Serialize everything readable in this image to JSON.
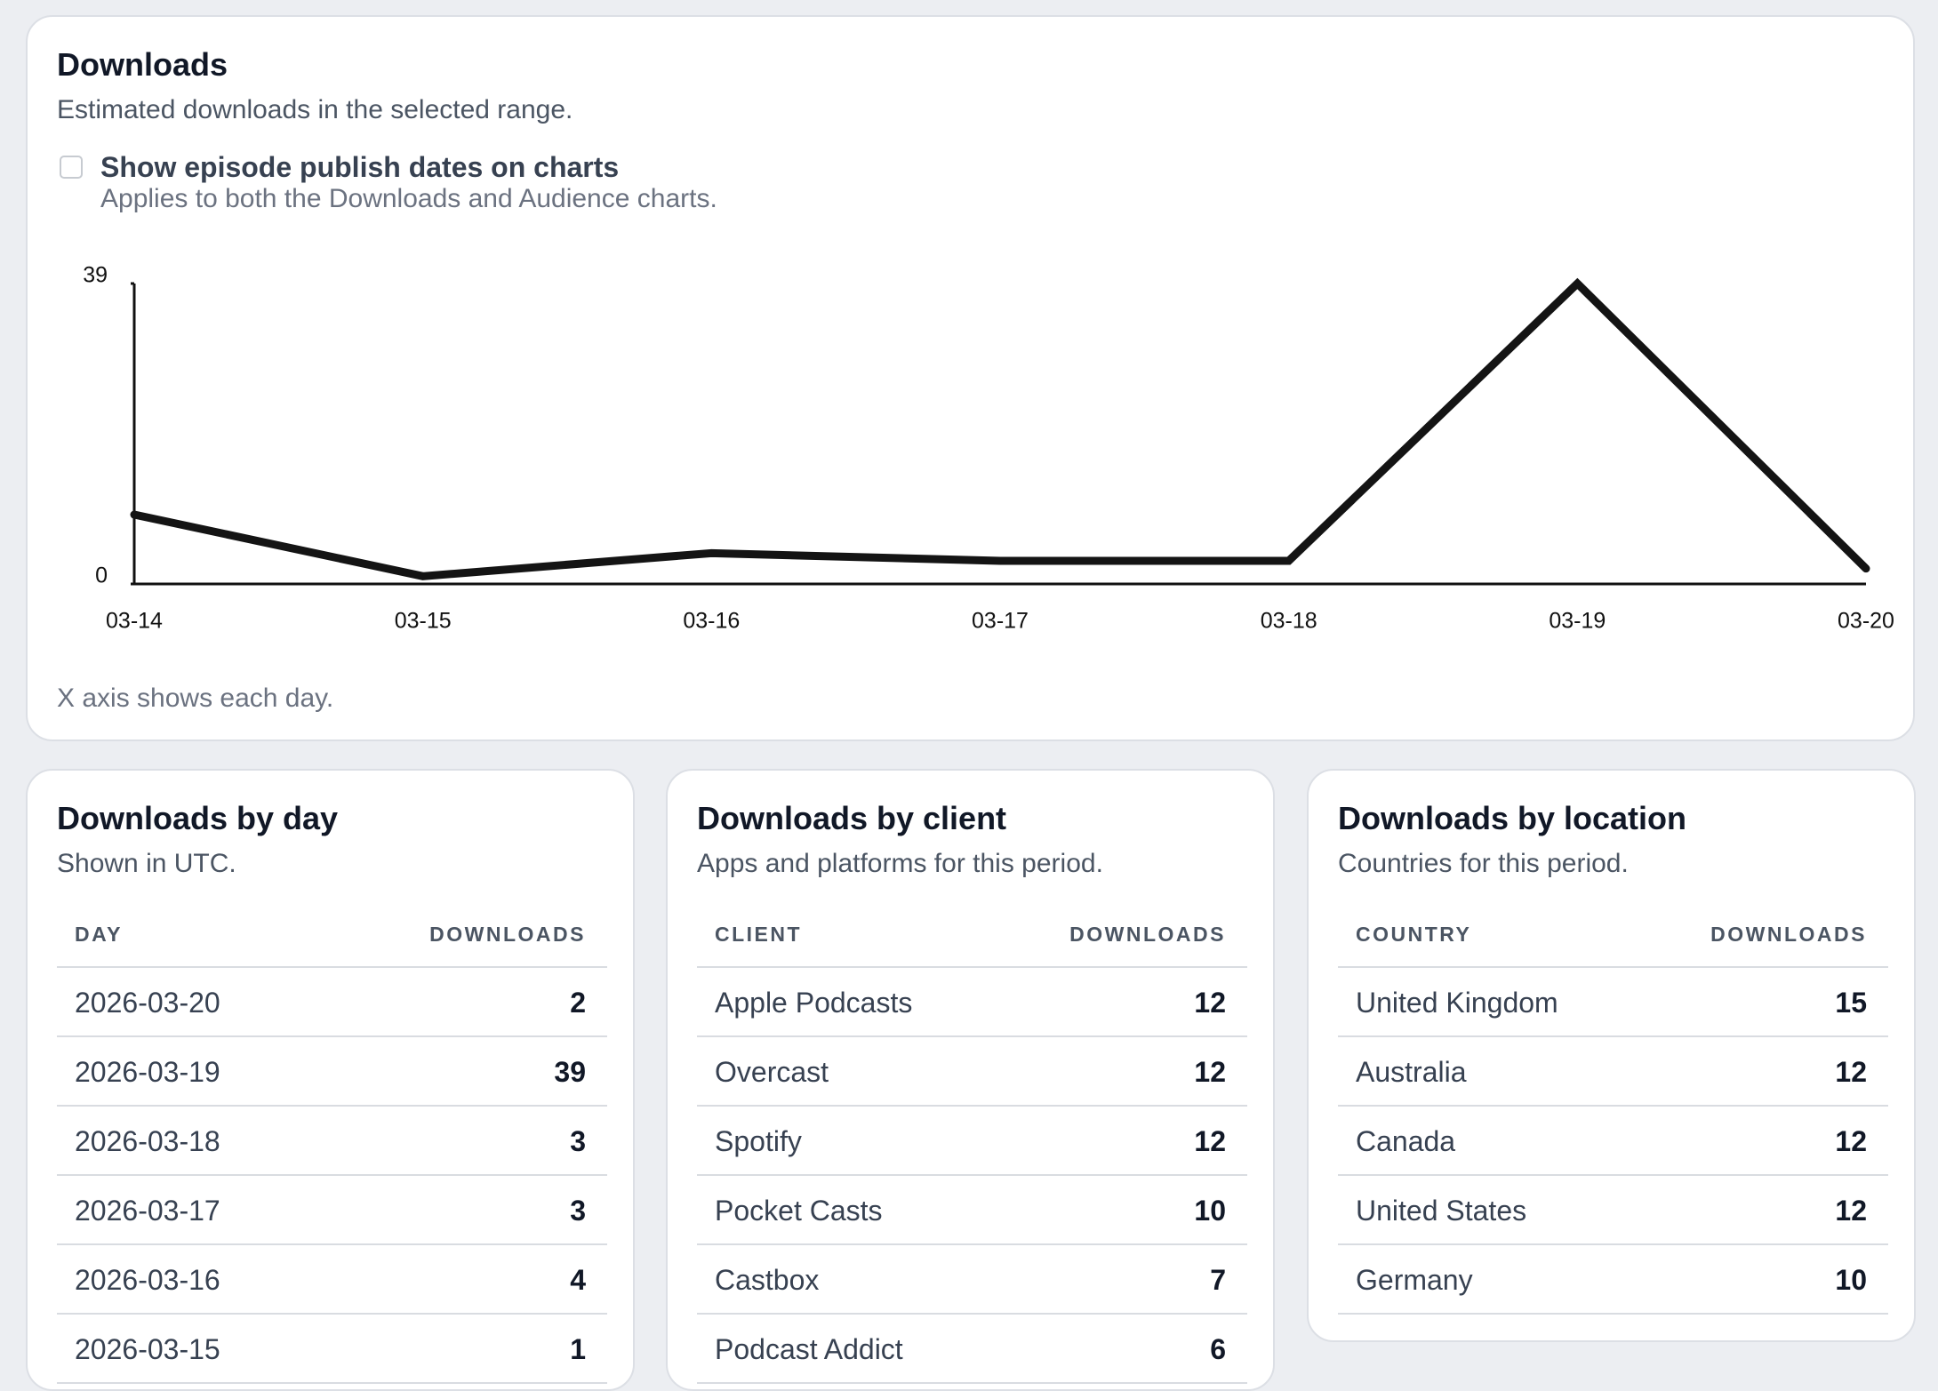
{
  "downloads_card": {
    "title": "Downloads",
    "subtitle": "Estimated downloads in the selected range.",
    "checkbox_label": "Show episode publish dates on charts",
    "checkbox_note": "Applies to both the Downloads and Audience charts.",
    "footnote": "X axis shows each day."
  },
  "chart_data": {
    "type": "line",
    "categories": [
      "03-14",
      "03-15",
      "03-16",
      "03-17",
      "03-18",
      "03-19",
      "03-20"
    ],
    "values": [
      9,
      1,
      4,
      3,
      3,
      39,
      2
    ],
    "color": "#141414",
    "ylim": [
      0,
      39
    ],
    "yticks": [
      0,
      39
    ]
  },
  "tables": [
    {
      "title": "Downloads by day",
      "subtitle": "Shown in UTC.",
      "columns": [
        "DAY",
        "DOWNLOADS"
      ],
      "rows": [
        [
          "2026-03-20",
          2
        ],
        [
          "2026-03-19",
          39
        ],
        [
          "2026-03-18",
          3
        ],
        [
          "2026-03-17",
          3
        ],
        [
          "2026-03-16",
          4
        ],
        [
          "2026-03-15",
          1
        ]
      ]
    },
    {
      "title": "Downloads by client",
      "subtitle": "Apps and platforms for this period.",
      "columns": [
        "CLIENT",
        "DOWNLOADS"
      ],
      "rows": [
        [
          "Apple Podcasts",
          12
        ],
        [
          "Overcast",
          12
        ],
        [
          "Spotify",
          12
        ],
        [
          "Pocket Casts",
          10
        ],
        [
          "Castbox",
          7
        ],
        [
          "Podcast Addict",
          6
        ]
      ]
    },
    {
      "title": "Downloads by location",
      "subtitle": "Countries for this period.",
      "columns": [
        "COUNTRY",
        "DOWNLOADS"
      ],
      "rows": [
        [
          "United Kingdom",
          15
        ],
        [
          "Australia",
          12
        ],
        [
          "Canada",
          12
        ],
        [
          "United States",
          12
        ],
        [
          "Germany",
          10
        ]
      ]
    }
  ]
}
